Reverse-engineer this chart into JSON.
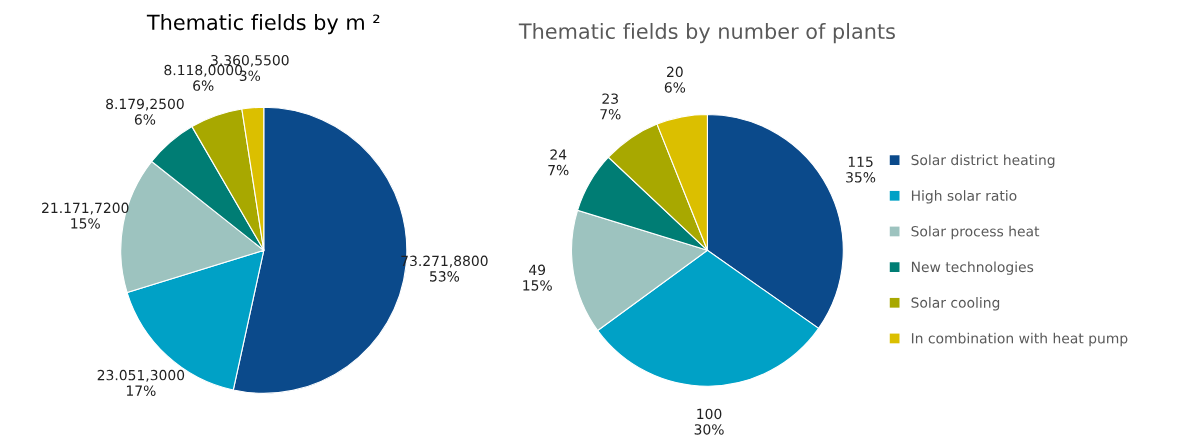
{
  "chart_data": [
    {
      "type": "pie",
      "title": "Thematic fields by m ²",
      "categories": [
        null,
        null,
        null,
        null,
        null,
        null
      ],
      "values": [
        73271.88,
        23051.3,
        21171.72,
        8179.25,
        8118.0,
        3360.55
      ],
      "value_labels": [
        "73.271,8800\n53%",
        "23.051,3000\n17%",
        "21.171,7200\n15%",
        "8.179,2500\n6%",
        "8.118,0000\n6%",
        "3.360,5500\n3%"
      ],
      "colors": [
        "#0b4a8b",
        "#00a1c6",
        "#9dc3bf",
        "#007d74",
        "#a8a800",
        "#dbbf00"
      ]
    },
    {
      "type": "pie",
      "title": "Thematic fields by number of plants",
      "categories": [
        "Solar district heating",
        "High solar ratio",
        "Solar process heat",
        "New technologies",
        "Solar cooling",
        "In combination with heat pump"
      ],
      "values": [
        115,
        100,
        49,
        24,
        23,
        20
      ],
      "value_labels": [
        "115\n35%",
        "100\n30%",
        "49\n15%",
        "24\n7%",
        "23\n7%",
        "20\n6%"
      ],
      "colors": [
        "#0b4a8b",
        "#00a1c6",
        "#9dc3bf",
        "#007d74",
        "#a8a800",
        "#dbbf00"
      ],
      "legend": "right"
    }
  ]
}
